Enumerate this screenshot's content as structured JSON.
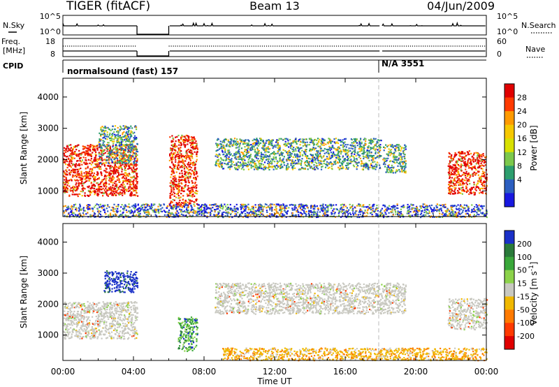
{
  "header": {
    "radar": "TIGER (fitACF)",
    "beam": "Beam 13",
    "date": "04/Jun/2009"
  },
  "summary": {
    "nsky_label": "N.Sky",
    "nsearch_label": "N.Search",
    "freq_label_1": "Freq.",
    "freq_label_2": "[MHz]",
    "nave_label": "Nave",
    "cpid_label": "CPID",
    "noise_ticks_left": [
      "10^5",
      "10^0"
    ],
    "noise_ticks_right": [
      "10^5",
      "10^0"
    ],
    "freq_ticks": [
      "18",
      "8"
    ],
    "nave_ticks": [
      "60",
      "0"
    ],
    "cpid_1": "normalsound (fast) 157",
    "cpid_2": "N/A 3551"
  },
  "chart_data": [
    {
      "type": "heatmap",
      "title": "",
      "xlabel": "Time UT",
      "ylabel": "Slant Range [km]",
      "x_ticks": [
        "00:00",
        "04:00",
        "08:00",
        "12:00",
        "16:00",
        "20:00",
        "00:00"
      ],
      "xlim_hours": [
        0,
        24
      ],
      "y_ticks": [
        1000,
        2000,
        3000,
        4000
      ],
      "ylim": [
        180,
        4600
      ],
      "data_gaps_hours": [
        [
          4.2,
          6.0
        ],
        [
          18.0,
          18.1
        ]
      ],
      "colorbar": {
        "label": "Power [dB]",
        "ticks": [
          "28",
          "24",
          "20",
          "16",
          "12",
          "8",
          "4"
        ],
        "colors": [
          "#e00000",
          "#ff3a00",
          "#ff9a00",
          "#f6c800",
          "#d8e000",
          "#7cc84c",
          "#2d9e6e",
          "#2c5fc0",
          "#1818e0"
        ]
      },
      "regions": [
        {
          "t0": 0.0,
          "t1": 4.2,
          "r0": 850,
          "r1": 2500,
          "level": "high"
        },
        {
          "t0": 2.0,
          "t1": 4.2,
          "r0": 1900,
          "r1": 3100,
          "level": "mid"
        },
        {
          "t0": 6.0,
          "t1": 7.6,
          "r0": 500,
          "r1": 2800,
          "level": "high"
        },
        {
          "t0": 8.6,
          "t1": 18.0,
          "r0": 1700,
          "r1": 2700,
          "level": "mid"
        },
        {
          "t0": 18.1,
          "t1": 19.4,
          "r0": 1600,
          "r1": 2500,
          "level": "mid"
        },
        {
          "t0": 21.8,
          "t1": 24.0,
          "r0": 900,
          "r1": 2300,
          "level": "high"
        },
        {
          "t0": 0.0,
          "t1": 24.0,
          "r0": 180,
          "r1": 600,
          "level": "low"
        }
      ]
    },
    {
      "type": "heatmap",
      "title": "",
      "xlabel": "Time UT",
      "ylabel": "Slant Range [km]",
      "x_ticks": [
        "00:00",
        "04:00",
        "08:00",
        "12:00",
        "16:00",
        "20:00",
        "00:00"
      ],
      "xlim_hours": [
        0,
        24
      ],
      "y_ticks": [
        1000,
        2000,
        3000,
        4000
      ],
      "ylim": [
        180,
        4600
      ],
      "colorbar": {
        "label": "Velocity [m s^-1]",
        "ticks": [
          "200",
          "100",
          "50",
          "15",
          "-15",
          "-50",
          "-100",
          "-200"
        ],
        "colors": [
          "#1a30c8",
          "#2a7a3a",
          "#3aa83a",
          "#8cd24a",
          "#c8c8c0",
          "#f0b800",
          "#ff7a00",
          "#ff3a00",
          "#e00000"
        ]
      },
      "regions": [
        {
          "t0": 0.0,
          "t1": 4.2,
          "r0": 900,
          "r1": 2100,
          "velocity": "~0 (grey)"
        },
        {
          "t0": 2.3,
          "t1": 4.2,
          "r0": 2400,
          "r1": 3100,
          "velocity": "+200 (blue)"
        },
        {
          "t0": 6.5,
          "t1": 7.6,
          "r0": 500,
          "r1": 1600,
          "velocity": "+50 to +200"
        },
        {
          "t0": 8.6,
          "t1": 19.4,
          "r0": 1700,
          "r1": 2700,
          "velocity": "~0 (grey)"
        },
        {
          "t0": 21.8,
          "t1": 24.0,
          "r0": 1200,
          "r1": 2200,
          "velocity": "~0 (grey)"
        },
        {
          "t0": 9.0,
          "t1": 24.0,
          "r0": 200,
          "r1": 600,
          "velocity": "-15 to -50"
        }
      ]
    }
  ]
}
